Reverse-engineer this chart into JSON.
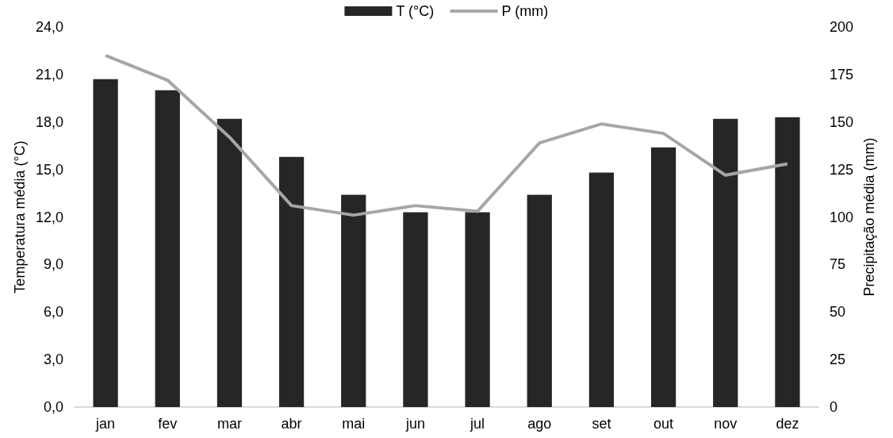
{
  "chart_data": {
    "type": "bar",
    "categories": [
      "jan",
      "fev",
      "mar",
      "abr",
      "mai",
      "jun",
      "jul",
      "ago",
      "set",
      "out",
      "nov",
      "dez"
    ],
    "series": [
      {
        "name": "T (°C)",
        "color": "#262626",
        "values": [
          20.7,
          20.0,
          18.2,
          15.8,
          13.4,
          12.3,
          12.3,
          13.4,
          14.8,
          16.4,
          18.2,
          18.3
        ]
      },
      {
        "name": "P (mm)",
        "type": "line",
        "axis": "y2",
        "color": "#a6a6a6",
        "values": [
          185,
          172,
          142,
          106,
          101,
          106,
          103,
          139,
          149,
          144,
          122,
          128
        ]
      }
    ],
    "ylabel": "Temperatura média (°C)",
    "y2label": "Precipitação média (mm)",
    "ylim": [
      0,
      24
    ],
    "yticks": [
      {
        "value": 0,
        "label": "0,0"
      },
      {
        "value": 3,
        "label": "3,0"
      },
      {
        "value": 6,
        "label": "6,0"
      },
      {
        "value": 9,
        "label": "9,0"
      },
      {
        "value": 12,
        "label": "12,0"
      },
      {
        "value": 15,
        "label": "15,0"
      },
      {
        "value": 18,
        "label": "18,0"
      },
      {
        "value": 21,
        "label": "21,0"
      },
      {
        "value": 24,
        "label": "24,0"
      }
    ],
    "y2lim": [
      0,
      200
    ],
    "y2ticks": [
      0,
      25,
      50,
      75,
      100,
      125,
      150,
      175,
      200
    ],
    "legend": "top",
    "grid": false,
    "marker": "none"
  }
}
